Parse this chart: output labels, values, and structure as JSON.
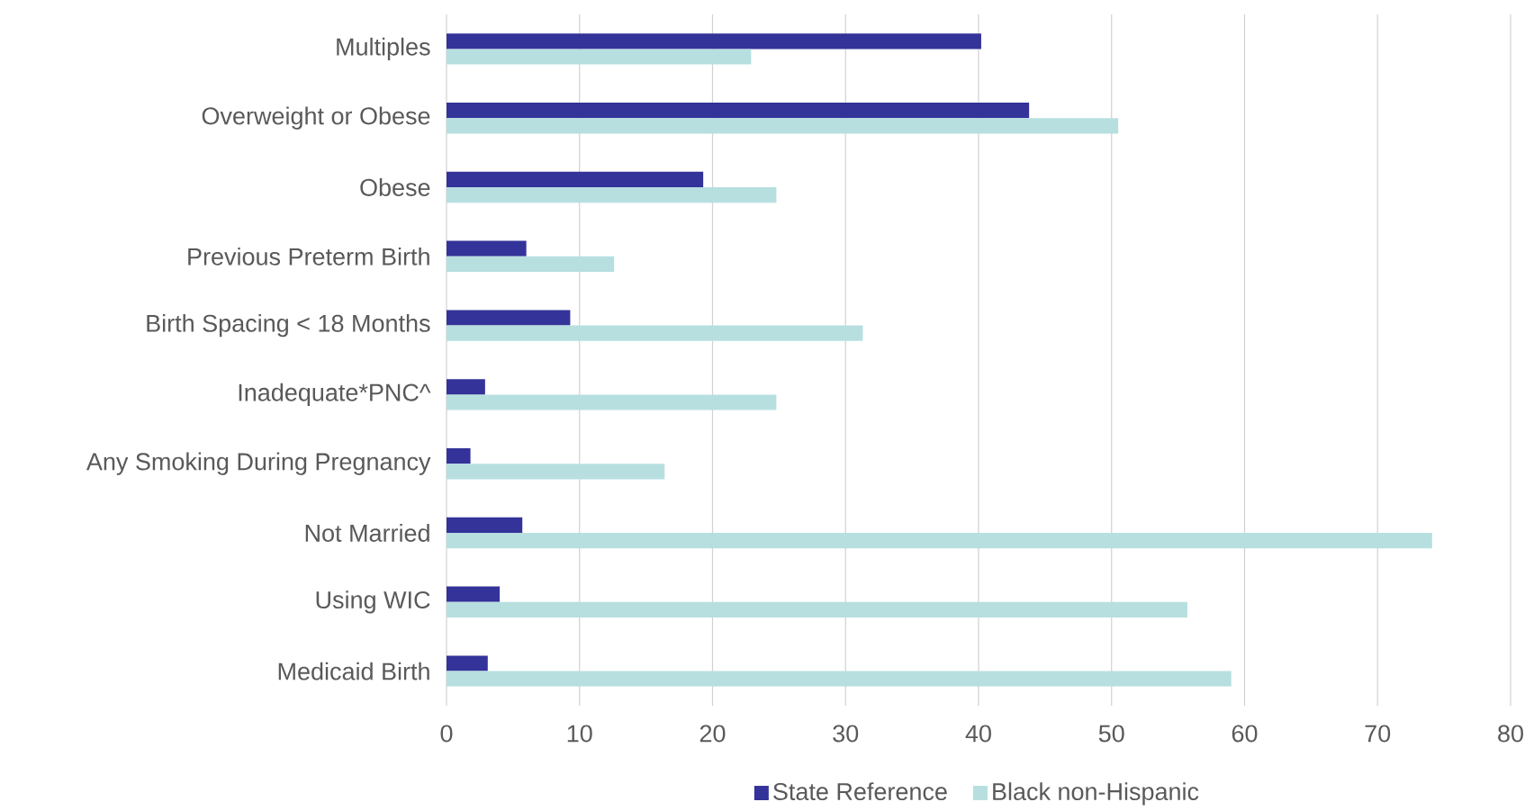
{
  "chart_data": {
    "type": "bar",
    "orientation": "horizontal",
    "categories": [
      "Multiples",
      "Overweight or Obese",
      "Obese",
      "Previous Preterm Birth",
      "Birth Spacing < 18 Months",
      "Inadequate*PNC^",
      "Any Smoking During Pregnancy",
      "Not Married",
      "Using WIC",
      "Medicaid Birth"
    ],
    "series": [
      {
        "name": "State Reference",
        "color": "#333399",
        "values": [
          40.2,
          43.8,
          19.3,
          6.0,
          9.3,
          2.9,
          1.8,
          5.7,
          4.0,
          3.1
        ]
      },
      {
        "name": "Black non-Hispanic",
        "color": "#b7dfe0",
        "values": [
          22.9,
          50.5,
          24.8,
          12.6,
          31.3,
          24.8,
          16.4,
          74.1,
          55.7,
          59.0
        ]
      }
    ],
    "xlim": [
      0,
      80
    ],
    "xticks": [
      0,
      10,
      20,
      30,
      40,
      50,
      60,
      70,
      80
    ],
    "grid": "x",
    "legend": "bottom"
  }
}
